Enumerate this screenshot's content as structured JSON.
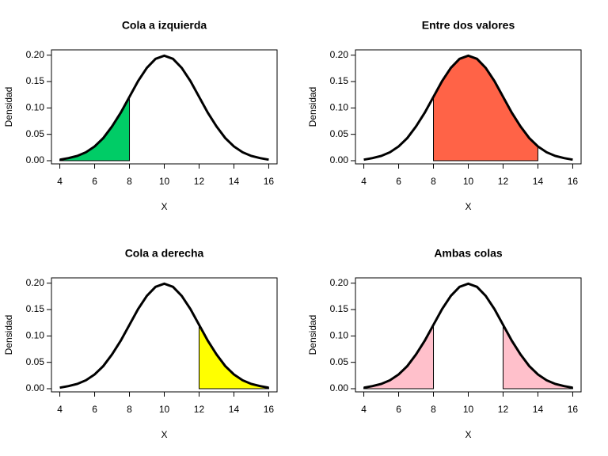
{
  "chart_data": [
    {
      "type": "line",
      "title": "Cola a izquierda",
      "xlabel": "X",
      "ylabel": "Densidad",
      "x": [
        4,
        4.5,
        5,
        5.5,
        6,
        6.5,
        7,
        7.5,
        8,
        8.5,
        9,
        9.5,
        10,
        10.5,
        11,
        11.5,
        12,
        12.5,
        13,
        13.5,
        14,
        14.5,
        15,
        15.5,
        16
      ],
      "values": [
        0.002,
        0.005,
        0.009,
        0.016,
        0.027,
        0.043,
        0.065,
        0.091,
        0.121,
        0.151,
        0.176,
        0.193,
        0.199,
        0.193,
        0.176,
        0.151,
        0.121,
        0.091,
        0.065,
        0.043,
        0.027,
        0.016,
        0.009,
        0.005,
        0.002
      ],
      "color": "#000000",
      "fill_ranges": [
        [
          4,
          8
        ]
      ],
      "fill": "#00cc66",
      "xlim": [
        3.52,
        16.48
      ],
      "ylim": [
        -0.006,
        0.21
      ],
      "xticks": [
        4,
        6,
        8,
        10,
        12,
        14,
        16
      ],
      "yticks": [
        {
          "value": 0,
          "label": "0.00"
        },
        {
          "value": 0.05,
          "label": "0.05"
        },
        {
          "value": 0.1,
          "label": "0.10"
        },
        {
          "value": 0.15,
          "label": "0.15"
        },
        {
          "value": 0.2,
          "label": "0.20"
        }
      ]
    },
    {
      "type": "line",
      "title": "Entre dos valores",
      "xlabel": "X",
      "ylabel": "Densidad",
      "x": [
        4,
        4.5,
        5,
        5.5,
        6,
        6.5,
        7,
        7.5,
        8,
        8.5,
        9,
        9.5,
        10,
        10.5,
        11,
        11.5,
        12,
        12.5,
        13,
        13.5,
        14,
        14.5,
        15,
        15.5,
        16
      ],
      "values": [
        0.002,
        0.005,
        0.009,
        0.016,
        0.027,
        0.043,
        0.065,
        0.091,
        0.121,
        0.151,
        0.176,
        0.193,
        0.199,
        0.193,
        0.176,
        0.151,
        0.121,
        0.091,
        0.065,
        0.043,
        0.027,
        0.016,
        0.009,
        0.005,
        0.002
      ],
      "color": "#000000",
      "fill_ranges": [
        [
          8,
          14
        ]
      ],
      "fill": "#ff6347",
      "xlim": [
        3.52,
        16.48
      ],
      "ylim": [
        -0.006,
        0.21
      ],
      "xticks": [
        4,
        6,
        8,
        10,
        12,
        14,
        16
      ],
      "yticks": [
        {
          "value": 0,
          "label": "0.00"
        },
        {
          "value": 0.05,
          "label": "0.05"
        },
        {
          "value": 0.1,
          "label": "0.10"
        },
        {
          "value": 0.15,
          "label": "0.15"
        },
        {
          "value": 0.2,
          "label": "0.20"
        }
      ]
    },
    {
      "type": "line",
      "title": "Cola a derecha",
      "xlabel": "X",
      "ylabel": "Densidad",
      "x": [
        4,
        4.5,
        5,
        5.5,
        6,
        6.5,
        7,
        7.5,
        8,
        8.5,
        9,
        9.5,
        10,
        10.5,
        11,
        11.5,
        12,
        12.5,
        13,
        13.5,
        14,
        14.5,
        15,
        15.5,
        16
      ],
      "values": [
        0.002,
        0.005,
        0.009,
        0.016,
        0.027,
        0.043,
        0.065,
        0.091,
        0.121,
        0.151,
        0.176,
        0.193,
        0.199,
        0.193,
        0.176,
        0.151,
        0.121,
        0.091,
        0.065,
        0.043,
        0.027,
        0.016,
        0.009,
        0.005,
        0.002
      ],
      "color": "#000000",
      "fill_ranges": [
        [
          12,
          16
        ]
      ],
      "fill": "#ffff00",
      "xlim": [
        3.52,
        16.48
      ],
      "ylim": [
        -0.006,
        0.21
      ],
      "xticks": [
        4,
        6,
        8,
        10,
        12,
        14,
        16
      ],
      "yticks": [
        {
          "value": 0,
          "label": "0.00"
        },
        {
          "value": 0.05,
          "label": "0.05"
        },
        {
          "value": 0.1,
          "label": "0.10"
        },
        {
          "value": 0.15,
          "label": "0.15"
        },
        {
          "value": 0.2,
          "label": "0.20"
        }
      ]
    },
    {
      "type": "line",
      "title": "Ambas colas",
      "xlabel": "X",
      "ylabel": "Densidad",
      "x": [
        4,
        4.5,
        5,
        5.5,
        6,
        6.5,
        7,
        7.5,
        8,
        8.5,
        9,
        9.5,
        10,
        10.5,
        11,
        11.5,
        12,
        12.5,
        13,
        13.5,
        14,
        14.5,
        15,
        15.5,
        16
      ],
      "values": [
        0.002,
        0.005,
        0.009,
        0.016,
        0.027,
        0.043,
        0.065,
        0.091,
        0.121,
        0.151,
        0.176,
        0.193,
        0.199,
        0.193,
        0.176,
        0.151,
        0.121,
        0.091,
        0.065,
        0.043,
        0.027,
        0.016,
        0.009,
        0.005,
        0.002
      ],
      "color": "#000000",
      "fill_ranges": [
        [
          4,
          8
        ],
        [
          12,
          16
        ]
      ],
      "fill": "#ffc0cb",
      "xlim": [
        3.52,
        16.48
      ],
      "ylim": [
        -0.006,
        0.21
      ],
      "xticks": [
        4,
        6,
        8,
        10,
        12,
        14,
        16
      ],
      "yticks": [
        {
          "value": 0,
          "label": "0.00"
        },
        {
          "value": 0.05,
          "label": "0.05"
        },
        {
          "value": 0.1,
          "label": "0.10"
        },
        {
          "value": 0.15,
          "label": "0.15"
        },
        {
          "value": 0.2,
          "label": "0.20"
        }
      ]
    }
  ]
}
